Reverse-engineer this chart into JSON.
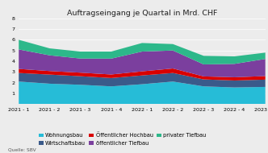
{
  "title": "Auftragseingang je Quartal in Mrd. CHF",
  "source": "Quelle: SBV",
  "x_labels": [
    "2021 - 1",
    "2021 - 2",
    "2021 - 3",
    "2021 - 4",
    "2022 - 1",
    "2022 - 2",
    "2022 - 3",
    "2022 - 4",
    "2023 - 1"
  ],
  "series": {
    "Wohnungsbau": [
      2.1,
      1.9,
      1.8,
      1.65,
      1.85,
      2.1,
      1.65,
      1.55,
      1.6
    ],
    "Wirtschaftsbau": [
      0.8,
      0.85,
      0.8,
      0.78,
      0.82,
      0.8,
      0.65,
      0.65,
      0.68
    ],
    "Öffentlicher Hochbau": [
      0.38,
      0.33,
      0.33,
      0.33,
      0.38,
      0.42,
      0.28,
      0.3,
      0.33
    ],
    "öffentlicher Tiefbau": [
      1.82,
      1.47,
      1.32,
      1.48,
      1.85,
      1.68,
      1.12,
      1.25,
      1.6
    ],
    "privater Tiefbau": [
      0.9,
      0.65,
      0.65,
      0.66,
      0.8,
      0.6,
      0.8,
      0.7,
      0.59
    ]
  },
  "colors": {
    "Wohnungsbau": "#26bcd7",
    "Wirtschaftsbau": "#3a5a8a",
    "Öffentlicher Hochbau": "#d90000",
    "öffentlicher Tiefbau": "#7b3f9e",
    "privater Tiefbau": "#2db88a"
  },
  "ylim": [
    0,
    8
  ],
  "yticks": [
    1,
    2,
    3,
    4,
    5,
    6,
    7,
    8
  ],
  "background_color": "#ececec",
  "title_fontsize": 6.8,
  "legend_fontsize": 4.8,
  "tick_fontsize": 4.6,
  "source_fontsize": 4.2
}
